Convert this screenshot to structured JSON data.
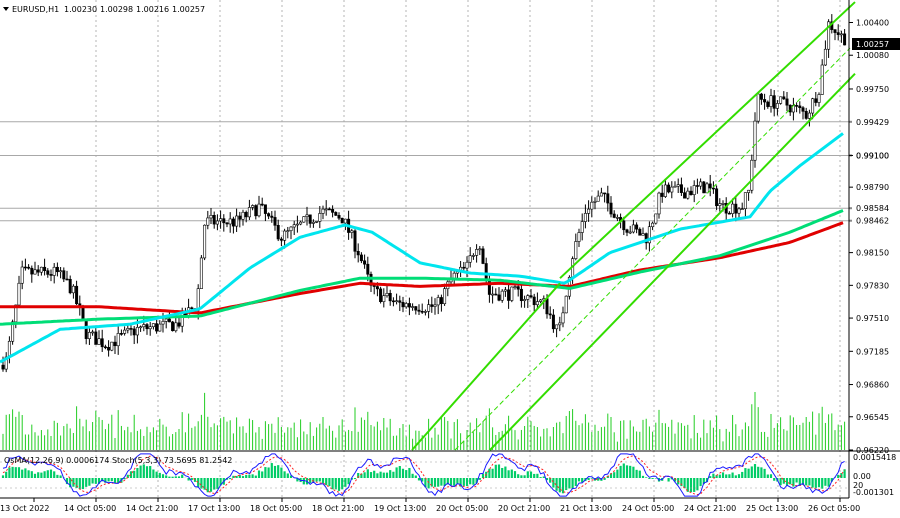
{
  "header": {
    "symbol": "EURUSD,H1",
    "open": "1.00230",
    "high": "1.00298",
    "low": "1.00216",
    "close": "1.00257"
  },
  "price_axis": {
    "ticks": [
      "1.00400",
      "1.00080",
      "0.99750",
      "0.99100",
      "0.98790",
      "0.98150",
      "0.97830",
      "0.97510",
      "0.97185",
      "0.96860",
      "0.96545",
      "0.96220"
    ],
    "current_price": "1.00257",
    "levels": [
      {
        "label": "0.99429",
        "value": 0.99429
      },
      {
        "label": "0.99100",
        "value": 0.991
      },
      {
        "label": "0.98584",
        "value": 0.98584
      },
      {
        "label": "0.98462",
        "value": 0.98462
      }
    ]
  },
  "time_axis": {
    "labels": [
      "13 Oct 2022",
      "14 Oct 05:00",
      "14 Oct 21:00",
      "17 Oct 13:00",
      "18 Oct 05:00",
      "18 Oct 21:00",
      "19 Oct 13:00",
      "20 Oct 05:00",
      "20 Oct 21:00",
      "21 Oct 13:00",
      "24 Oct 05:00",
      "24 Oct 21:00",
      "25 Oct 13:00",
      "26 Oct 05:00"
    ]
  },
  "sub_window": {
    "label": "OsMA(12,26,9) 0.0006174  Stoch(5,3,3) 73.5695 81.2542",
    "ticks": [
      "0.0015418",
      "0.00",
      "20",
      "-0.001301"
    ]
  },
  "colors": {
    "background": "#ffffff",
    "grid": "#b4b4b4",
    "candle": "#000000",
    "ma_fast": "#00e5ee",
    "ma_mid": "#00dd77",
    "ma_slow": "#e00000",
    "channel": "#33dd00",
    "volume": "#22cc22",
    "osma": "#00cc66",
    "stoch_main": "#1a1aff",
    "stoch_signal": "#ff2222"
  },
  "chart_data": {
    "type": "candlestick",
    "symbol": "EURUSD",
    "timeframe": "H1",
    "ylim": [
      0.9622,
      1.0062
    ],
    "anchors": [
      {
        "x": 0,
        "price": 0.9705
      },
      {
        "x": 10,
        "price": 0.971
      },
      {
        "x": 25,
        "price": 0.9795
      },
      {
        "x": 60,
        "price": 0.9795
      },
      {
        "x": 75,
        "price": 0.978
      },
      {
        "x": 90,
        "price": 0.9735
      },
      {
        "x": 110,
        "price": 0.9725
      },
      {
        "x": 140,
        "price": 0.974
      },
      {
        "x": 180,
        "price": 0.9745
      },
      {
        "x": 200,
        "price": 0.9765
      },
      {
        "x": 208,
        "price": 0.9845
      },
      {
        "x": 240,
        "price": 0.9845
      },
      {
        "x": 262,
        "price": 0.986
      },
      {
        "x": 285,
        "price": 0.983
      },
      {
        "x": 325,
        "price": 0.9855
      },
      {
        "x": 345,
        "price": 0.985
      },
      {
        "x": 362,
        "price": 0.9815
      },
      {
        "x": 375,
        "price": 0.9778
      },
      {
        "x": 400,
        "price": 0.9765
      },
      {
        "x": 440,
        "price": 0.9762
      },
      {
        "x": 455,
        "price": 0.979
      },
      {
        "x": 470,
        "price": 0.98
      },
      {
        "x": 482,
        "price": 0.983
      },
      {
        "x": 492,
        "price": 0.9775
      },
      {
        "x": 520,
        "price": 0.9775
      },
      {
        "x": 548,
        "price": 0.9765
      },
      {
        "x": 562,
        "price": 0.9735
      },
      {
        "x": 575,
        "price": 0.981
      },
      {
        "x": 590,
        "price": 0.986
      },
      {
        "x": 605,
        "price": 0.987
      },
      {
        "x": 630,
        "price": 0.984
      },
      {
        "x": 650,
        "price": 0.983
      },
      {
        "x": 665,
        "price": 0.9875
      },
      {
        "x": 690,
        "price": 0.9875
      },
      {
        "x": 710,
        "price": 0.988
      },
      {
        "x": 725,
        "price": 0.986
      },
      {
        "x": 745,
        "price": 0.986
      },
      {
        "x": 752,
        "price": 0.9875
      },
      {
        "x": 760,
        "price": 0.9965
      },
      {
        "x": 790,
        "price": 0.996
      },
      {
        "x": 810,
        "price": 0.995
      },
      {
        "x": 822,
        "price": 0.9975
      },
      {
        "x": 832,
        "price": 1.004
      },
      {
        "x": 846,
        "price": 1.0025
      }
    ],
    "ma_fast": [
      {
        "x": 0,
        "price": 0.9708
      },
      {
        "x": 60,
        "price": 0.974
      },
      {
        "x": 130,
        "price": 0.9745
      },
      {
        "x": 200,
        "price": 0.976
      },
      {
        "x": 250,
        "price": 0.98
      },
      {
        "x": 300,
        "price": 0.983
      },
      {
        "x": 345,
        "price": 0.9842
      },
      {
        "x": 372,
        "price": 0.9835
      },
      {
        "x": 420,
        "price": 0.9805
      },
      {
        "x": 470,
        "price": 0.9795
      },
      {
        "x": 520,
        "price": 0.9792
      },
      {
        "x": 565,
        "price": 0.9785
      },
      {
        "x": 610,
        "price": 0.9815
      },
      {
        "x": 680,
        "price": 0.9838
      },
      {
        "x": 750,
        "price": 0.985
      },
      {
        "x": 770,
        "price": 0.9875
      },
      {
        "x": 800,
        "price": 0.99
      },
      {
        "x": 845,
        "price": 0.9933
      }
    ],
    "ma_mid": [
      {
        "x": 0,
        "price": 0.9745
      },
      {
        "x": 100,
        "price": 0.975
      },
      {
        "x": 200,
        "price": 0.9753
      },
      {
        "x": 300,
        "price": 0.9778
      },
      {
        "x": 360,
        "price": 0.979
      },
      {
        "x": 420,
        "price": 0.979
      },
      {
        "x": 500,
        "price": 0.9788
      },
      {
        "x": 570,
        "price": 0.978
      },
      {
        "x": 640,
        "price": 0.9796
      },
      {
        "x": 720,
        "price": 0.9812
      },
      {
        "x": 790,
        "price": 0.9835
      },
      {
        "x": 845,
        "price": 0.9857
      }
    ],
    "ma_slow": [
      {
        "x": 0,
        "price": 0.9762
      },
      {
        "x": 100,
        "price": 0.9762
      },
      {
        "x": 200,
        "price": 0.9756
      },
      {
        "x": 300,
        "price": 0.9775
      },
      {
        "x": 360,
        "price": 0.9785
      },
      {
        "x": 420,
        "price": 0.9782
      },
      {
        "x": 500,
        "price": 0.9785
      },
      {
        "x": 570,
        "price": 0.9782
      },
      {
        "x": 640,
        "price": 0.9798
      },
      {
        "x": 720,
        "price": 0.981
      },
      {
        "x": 790,
        "price": 0.9825
      },
      {
        "x": 845,
        "price": 0.9845
      }
    ],
    "channel": {
      "upper": [
        {
          "x": 560,
          "price": 0.979
        },
        {
          "x": 855,
          "price": 1.006
        }
      ],
      "middle": [
        {
          "x": 485,
          "price": 0.9622
        },
        {
          "x": 850,
          "price": 1.0015
        }
      ],
      "lower": [
        {
          "x": 490,
          "price": 0.9622
        },
        {
          "x": 855,
          "price": 0.999
        }
      ]
    }
  }
}
